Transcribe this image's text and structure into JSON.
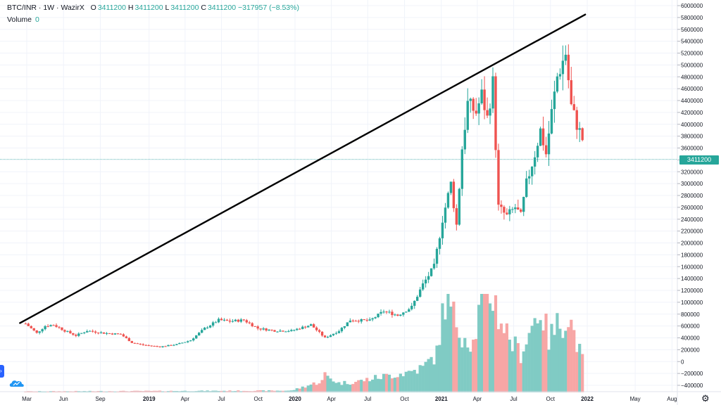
{
  "legend": {
    "symbol": "BTC/INR",
    "interval": "1W",
    "exchange": "WazirX",
    "open_label": "O",
    "open": "3411200",
    "high_label": "H",
    "high": "3411200",
    "low_label": "L",
    "low": "3411200",
    "close_label": "C",
    "close": "3411200",
    "change": "−317957 (−8.53%)"
  },
  "volume_legend": {
    "label": "Volume",
    "value": "0"
  },
  "last_price_label": "3411200",
  "icons": {
    "settings": "gear-icon",
    "logo": "tradingview-cloud-icon",
    "left_tab": "chevron-right-icon"
  },
  "colors": {
    "up": "#26a69a",
    "down": "#ef5350",
    "up_volume": "#80cbc4",
    "down_volume": "#f7a6a5",
    "trendline": "#000000",
    "grid": "#f0f3fa"
  },
  "chart_data": {
    "type": "candlestick",
    "symbol": "BTC/INR",
    "interval": "1W",
    "y_axis": {
      "min": -400000,
      "max": 6000000,
      "step": 200000,
      "position": "right"
    },
    "x_axis": {
      "ticks": [
        {
          "label": "Mar",
          "date": "2018-03-01"
        },
        {
          "label": "Jun",
          "date": "2018-06-01"
        },
        {
          "label": "Sep",
          "date": "2018-09-01"
        },
        {
          "label": "2019",
          "date": "2019-01-01"
        },
        {
          "label": "Apr",
          "date": "2019-04-01"
        },
        {
          "label": "Jul",
          "date": "2019-07-01"
        },
        {
          "label": "Oct",
          "date": "2019-10-01"
        },
        {
          "label": "2020",
          "date": "2020-01-01"
        },
        {
          "label": "Apr",
          "date": "2020-04-01"
        },
        {
          "label": "Jul",
          "date": "2020-07-01"
        },
        {
          "label": "Oct",
          "date": "2020-10-01"
        },
        {
          "label": "2021",
          "date": "2021-01-01"
        },
        {
          "label": "Apr",
          "date": "2021-04-01"
        },
        {
          "label": "Jul",
          "date": "2021-07-01"
        },
        {
          "label": "Oct",
          "date": "2021-10-01"
        },
        {
          "label": "2022",
          "date": "2022-01-01"
        },
        {
          "label": "May",
          "date": "2022-05-01"
        },
        {
          "label": "Aug",
          "date": "2022-08-01"
        }
      ]
    },
    "last_price": 3411200,
    "close_anchors": [
      {
        "date": "2018-02-26",
        "close": 640000
      },
      {
        "date": "2018-03-12",
        "close": 560000
      },
      {
        "date": "2018-03-26",
        "close": 480000
      },
      {
        "date": "2018-04-16",
        "close": 600000
      },
      {
        "date": "2018-05-07",
        "close": 620000
      },
      {
        "date": "2018-06-04",
        "close": 520000
      },
      {
        "date": "2018-07-02",
        "close": 440000
      },
      {
        "date": "2018-07-30",
        "close": 520000
      },
      {
        "date": "2018-09-10",
        "close": 480000
      },
      {
        "date": "2018-10-22",
        "close": 460000
      },
      {
        "date": "2018-11-19",
        "close": 320000
      },
      {
        "date": "2018-12-17",
        "close": 280000
      },
      {
        "date": "2019-01-28",
        "close": 250000
      },
      {
        "date": "2019-03-11",
        "close": 290000
      },
      {
        "date": "2019-04-15",
        "close": 360000
      },
      {
        "date": "2019-05-20",
        "close": 560000
      },
      {
        "date": "2019-06-24",
        "close": 700000
      },
      {
        "date": "2019-07-22",
        "close": 680000
      },
      {
        "date": "2019-08-26",
        "close": 700000
      },
      {
        "date": "2019-09-30",
        "close": 560000
      },
      {
        "date": "2019-11-11",
        "close": 520000
      },
      {
        "date": "2019-12-23",
        "close": 520000
      },
      {
        "date": "2020-02-10",
        "close": 620000
      },
      {
        "date": "2020-03-16",
        "close": 400000
      },
      {
        "date": "2020-04-20",
        "close": 520000
      },
      {
        "date": "2020-05-18",
        "close": 700000
      },
      {
        "date": "2020-07-06",
        "close": 690000
      },
      {
        "date": "2020-08-10",
        "close": 850000
      },
      {
        "date": "2020-09-14",
        "close": 780000
      },
      {
        "date": "2020-10-19",
        "close": 920000
      },
      {
        "date": "2020-11-16",
        "close": 1300000
      },
      {
        "date": "2020-12-14",
        "close": 1600000
      },
      {
        "date": "2021-01-04",
        "close": 2400000
      },
      {
        "date": "2021-01-25",
        "close": 3000000
      },
      {
        "date": "2021-02-08",
        "close": 2300000
      },
      {
        "date": "2021-02-22",
        "close": 3600000
      },
      {
        "date": "2021-03-08",
        "close": 4350000
      },
      {
        "date": "2021-03-29",
        "close": 4200000
      },
      {
        "date": "2021-04-12",
        "close": 4500000
      },
      {
        "date": "2021-04-26",
        "close": 4100000
      },
      {
        "date": "2021-05-10",
        "close": 4700000
      },
      {
        "date": "2021-05-24",
        "close": 2600000
      },
      {
        "date": "2021-06-14",
        "close": 2450000
      },
      {
        "date": "2021-07-05",
        "close": 2600000
      },
      {
        "date": "2021-07-19",
        "close": 2450000
      },
      {
        "date": "2021-08-02",
        "close": 3000000
      },
      {
        "date": "2021-08-23",
        "close": 3500000
      },
      {
        "date": "2021-09-06",
        "close": 3900000
      },
      {
        "date": "2021-09-20",
        "close": 3500000
      },
      {
        "date": "2021-10-04",
        "close": 4200000
      },
      {
        "date": "2021-10-18",
        "close": 4800000
      },
      {
        "date": "2021-11-08",
        "close": 5200000
      },
      {
        "date": "2021-11-22",
        "close": 4300000
      },
      {
        "date": "2021-12-06",
        "close": 4000000
      },
      {
        "date": "2021-12-20",
        "close": 3750000
      }
    ],
    "volume_anchors": [
      {
        "date": "2018-02-26",
        "volume": 1500
      },
      {
        "date": "2019-12-23",
        "volume": 2500
      },
      {
        "date": "2020-03-09",
        "volume": 16000
      },
      {
        "date": "2020-03-16",
        "volume": 25000
      },
      {
        "date": "2020-04-20",
        "volume": 13000
      },
      {
        "date": "2020-06-01",
        "volume": 15000
      },
      {
        "date": "2020-08-03",
        "volume": 22000
      },
      {
        "date": "2020-10-05",
        "volume": 28000
      },
      {
        "date": "2020-11-16",
        "volume": 35000
      },
      {
        "date": "2020-12-21",
        "volume": 55000
      },
      {
        "date": "2021-01-04",
        "volume": 110000
      },
      {
        "date": "2021-01-11",
        "volume": 130000
      },
      {
        "date": "2021-02-22",
        "volume": 85000
      },
      {
        "date": "2021-03-22",
        "volume": 70000
      },
      {
        "date": "2021-04-12",
        "volume": 130000
      },
      {
        "date": "2021-05-10",
        "volume": 140000
      },
      {
        "date": "2021-05-24",
        "volume": 110000
      },
      {
        "date": "2021-06-28",
        "volume": 70000
      },
      {
        "date": "2021-07-19",
        "volume": 55000
      },
      {
        "date": "2021-08-16",
        "volume": 95000
      },
      {
        "date": "2021-09-06",
        "volume": 120000
      },
      {
        "date": "2021-09-27",
        "volume": 75000
      },
      {
        "date": "2021-10-18",
        "volume": 95000
      },
      {
        "date": "2021-11-15",
        "volume": 110000
      },
      {
        "date": "2021-12-20",
        "volume": 45000
      }
    ],
    "trendline": {
      "start": {
        "date": "2018-02-12",
        "price": 650000
      },
      "end": {
        "date": "2021-12-27",
        "price": 5850000
      }
    }
  }
}
